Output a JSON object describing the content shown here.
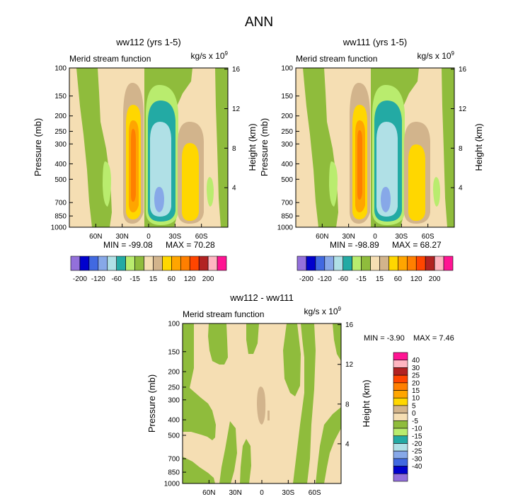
{
  "page_title": "ANN",
  "colors": {
    "background": "#f5deb3",
    "neg": {
      "n15": "#8fbc3c",
      "n60": "#b9ec6e",
      "n120": "#23aaa4",
      "n200": "#b0e0e6",
      "n300": "#87a8e8",
      "n400": "#4169e1",
      "n500": "#0000cd",
      "n600": "#9370db"
    },
    "pos": {
      "p15": "#d2b48c",
      "p60": "#ffd700",
      "p120": "#ffa500",
      "p200": "#ff7f00",
      "p300": "#ff4500",
      "p400": "#b22222",
      "p500": "#ffb6c1",
      "p600": "#ff1493"
    }
  },
  "chart_data": [
    {
      "id": "ww112",
      "type": "contour",
      "title": "ww112 (yrs 1-5)",
      "left_label": "Merid stream function",
      "units": {
        "base": "kg/s x 10",
        "exp": "9"
      },
      "ylabel": "Pressure (mb)",
      "y2label": "Height (km)",
      "xticks": [
        "60N",
        "30N",
        "0",
        "30S",
        "60S"
      ],
      "xtick_lat": [
        60,
        30,
        0,
        -30,
        -60
      ],
      "xlim": [
        90,
        -90
      ],
      "yticks": [
        "100",
        "150",
        "200",
        "250",
        "300",
        "400",
        "500",
        "700",
        "850",
        "1000"
      ],
      "ytick_vals": [
        100,
        150,
        200,
        250,
        300,
        400,
        500,
        700,
        850,
        1000
      ],
      "ylim": [
        100,
        1000
      ],
      "y2ticks": [
        "16",
        "12",
        "8",
        "4"
      ],
      "y2tick_vals": [
        16,
        12,
        8,
        4
      ],
      "min_text": "MIN = -99.08",
      "max_text": "MAX = 70.28",
      "min": -99.08,
      "max": 70.28
    },
    {
      "id": "ww111",
      "type": "contour",
      "title": "ww111 (yrs 1-5)",
      "left_label": "Merid stream function",
      "units": {
        "base": "kg/s x 10",
        "exp": "9"
      },
      "ylabel": "Pressure (mb)",
      "y2label": "Height (km)",
      "xticks": [
        "60N",
        "30N",
        "0",
        "30S",
        "60S"
      ],
      "xtick_lat": [
        60,
        30,
        0,
        -30,
        -60
      ],
      "xlim": [
        90,
        -90
      ],
      "yticks": [
        "100",
        "150",
        "200",
        "250",
        "300",
        "400",
        "500",
        "700",
        "850",
        "1000"
      ],
      "ytick_vals": [
        100,
        150,
        200,
        250,
        300,
        400,
        500,
        700,
        850,
        1000
      ],
      "ylim": [
        100,
        1000
      ],
      "y2ticks": [
        "16",
        "12",
        "8",
        "4"
      ],
      "y2tick_vals": [
        16,
        12,
        8,
        4
      ],
      "min_text": "MIN = -98.89",
      "max_text": "MAX = 68.27",
      "min": -98.89,
      "max": 68.27
    },
    {
      "id": "diff",
      "type": "contour",
      "title": "ww112 - ww111",
      "left_label": "Merid stream function",
      "units": {
        "base": "kg/s x 10",
        "exp": "9"
      },
      "ylabel": "Pressure (mb)",
      "y2label": "Height (km)",
      "xticks": [
        "60N",
        "30N",
        "0",
        "30S",
        "60S"
      ],
      "xtick_lat": [
        60,
        30,
        0,
        -30,
        -60
      ],
      "xlim": [
        90,
        -90
      ],
      "yticks": [
        "100",
        "150",
        "200",
        "250",
        "300",
        "400",
        "500",
        "700",
        "850",
        "1000"
      ],
      "ytick_vals": [
        100,
        150,
        200,
        250,
        300,
        400,
        500,
        700,
        850,
        1000
      ],
      "ylim": [
        100,
        1000
      ],
      "y2ticks": [
        "16",
        "12",
        "8",
        "4"
      ],
      "y2tick_vals": [
        16,
        12,
        8,
        4
      ],
      "min_text": "MIN =  -3.90",
      "max_text": "MAX =   7.46",
      "min": -3.9,
      "max": 7.46
    }
  ],
  "colorbar_top": {
    "orientation": "horizontal",
    "labels": [
      "-200",
      "-120",
      "-60",
      "-15",
      "15",
      "60",
      "120",
      "200"
    ],
    "levels": [
      -200,
      -160,
      -120,
      -80,
      -60,
      -40,
      -15,
      0,
      15,
      40,
      60,
      80,
      120,
      160,
      200
    ],
    "colors": [
      "#9370db",
      "#0000cd",
      "#4169e1",
      "#87a8e8",
      "#b0e0e6",
      "#23aaa4",
      "#b9ec6e",
      "#8fbc3c",
      "#f5deb3",
      "#d2b48c",
      "#ffd700",
      "#ffa500",
      "#ff7f00",
      "#ff4500",
      "#b22222",
      "#ffb6c1",
      "#ff1493"
    ]
  },
  "colorbar_bottom": {
    "orientation": "vertical",
    "labels": [
      "40",
      "30",
      "25",
      "20",
      "15",
      "10",
      "5",
      "0",
      "-5",
      "-10",
      "-15",
      "-20",
      "-25",
      "-30",
      "-40"
    ],
    "levels": [
      40,
      30,
      25,
      20,
      15,
      10,
      5,
      0,
      -5,
      -10,
      -15,
      -20,
      -25,
      -30,
      -40
    ],
    "colors": [
      "#ff1493",
      "#ffb6c1",
      "#b22222",
      "#ff4500",
      "#ff7f00",
      "#ffa500",
      "#ffd700",
      "#d2b48c",
      "#f5deb3",
      "#8fbc3c",
      "#b9ec6e",
      "#23aaa4",
      "#b0e0e6",
      "#87a8e8",
      "#4169e1",
      "#0000cd",
      "#9370db"
    ]
  }
}
